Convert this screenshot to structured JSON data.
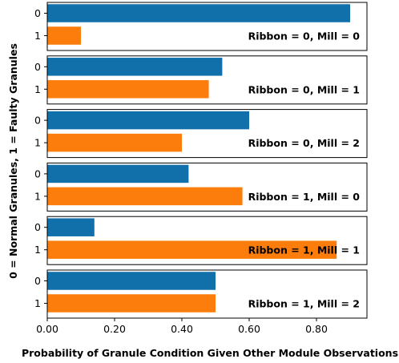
{
  "chart_data": {
    "type": "bar",
    "orientation": "horizontal",
    "xlabel": "Probability of Granule Condition Given Other Module Observations",
    "ylabel": "0 = Normal Granules, 1 = Faulty Granules",
    "xlim": [
      0,
      0.95
    ],
    "xticks": [
      "0.00",
      "0.20",
      "0.40",
      "0.60",
      "0.80"
    ],
    "xtick_values": [
      0,
      0.2,
      0.4,
      0.6,
      0.8
    ],
    "categories": [
      "0",
      "1"
    ],
    "colors": [
      "#1170aa",
      "#fc7d0b"
    ],
    "grid": false,
    "panels": [
      {
        "label": "Ribbon = 0, Mill = 0",
        "values": [
          0.9,
          0.1
        ]
      },
      {
        "label": "Ribbon = 0, Mill = 1",
        "values": [
          0.52,
          0.48
        ]
      },
      {
        "label": "Ribbon = 0, Mill = 2",
        "values": [
          0.6,
          0.4
        ]
      },
      {
        "label": "Ribbon = 1, Mill = 0",
        "values": [
          0.42,
          0.58
        ]
      },
      {
        "label": "Ribbon = 1, Mill = 1",
        "values": [
          0.14,
          0.86
        ]
      },
      {
        "label": "Ribbon = 1, Mill = 2",
        "values": [
          0.5,
          0.5
        ]
      }
    ]
  }
}
